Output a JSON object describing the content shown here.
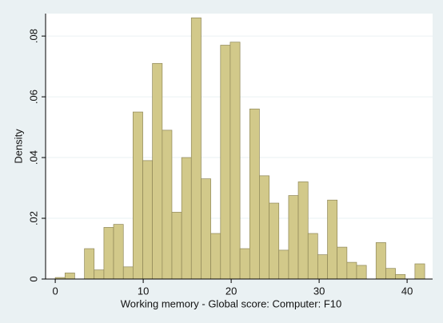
{
  "chart_data": {
    "type": "histogram",
    "xlabel": "Working memory - Global score: Computer: F10",
    "ylabel": "Density",
    "bins": [
      0,
      1.11,
      2.21,
      3.32,
      4.42,
      5.53,
      6.63,
      7.74,
      8.84,
      9.95,
      11.05,
      12.16,
      13.26,
      14.37,
      15.47,
      16.58,
      17.68,
      18.79,
      19.89,
      21,
      22.11,
      23.21,
      24.32,
      25.42,
      26.53,
      27.63,
      28.74,
      29.84,
      30.95,
      32.05,
      33.16,
      34.26,
      35.37,
      36.47,
      37.58,
      38.68,
      39.79,
      40.89,
      42
    ],
    "counts": [
      0.0005,
      0.002,
      0,
      0.01,
      0.003,
      0.017,
      0.018,
      0.004,
      0.055,
      0.039,
      0.071,
      0.049,
      0.022,
      0.04,
      0.086,
      0.033,
      0.015,
      0.077,
      0.078,
      0.01,
      0.056,
      0.034,
      0.025,
      0.0095,
      0.0275,
      0.032,
      0.015,
      0.008,
      0.026,
      0.0105,
      0.0055,
      0.0045,
      0,
      0.012,
      0.0035,
      0.0015,
      0,
      0.005
    ],
    "color": "#d2c98a",
    "xlim": [
      -1.1,
      42.9
    ],
    "ylim": [
      0,
      0.0874
    ],
    "xticks": [
      0,
      10,
      20,
      30,
      40
    ],
    "yticks": [
      0,
      {
        "value": 0.02,
        "label": ".02"
      },
      {
        "value": 0.04,
        "label": ".04"
      },
      {
        "value": 0.06,
        "label": ".06"
      },
      {
        "value": 0.08,
        "label": ".08"
      }
    ],
    "grid": true
  }
}
